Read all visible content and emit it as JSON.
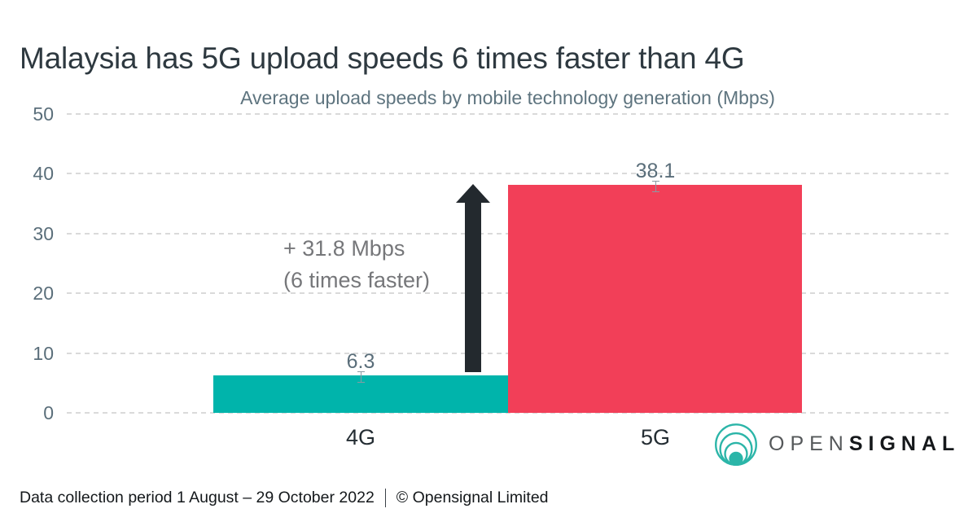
{
  "header": {
    "title": "Malaysia has 5G upload speeds 6 times faster than 4G"
  },
  "chart_data": {
    "type": "bar",
    "title": "Average upload speeds by mobile technology generation (Mbps)",
    "categories": [
      "4G",
      "5G"
    ],
    "values": [
      6.3,
      38.1
    ],
    "value_labels": [
      "6.3",
      "38.1"
    ],
    "ylabel": "",
    "xlabel": "",
    "ylim": [
      0,
      50
    ],
    "yticks": [
      0,
      10,
      20,
      30,
      40,
      50
    ],
    "grid": "horizontal-dashed",
    "legend": "none",
    "bar_colors": [
      "#00B4AB",
      "#F23F58"
    ],
    "annotation": {
      "line1": "+ 31.8 Mbps",
      "line2": "(6 times faster)",
      "arrow_direction": "up",
      "arrow_color": "#23292E"
    }
  },
  "logo": {
    "brand_part1": "OPEN",
    "brand_part2": "SIGNAL",
    "mark_color": "#2BB5A8"
  },
  "footer": {
    "period": "Data collection period 1 August – 29 October 2022",
    "copyright": "© Opensignal Limited"
  },
  "colors": {
    "title": "#2E3940",
    "axis_text": "#5A6E7A",
    "subtitle_text": "#5E747F",
    "gridline": "#DADADA",
    "teal": "#00B4AB",
    "pink": "#F23F58"
  }
}
